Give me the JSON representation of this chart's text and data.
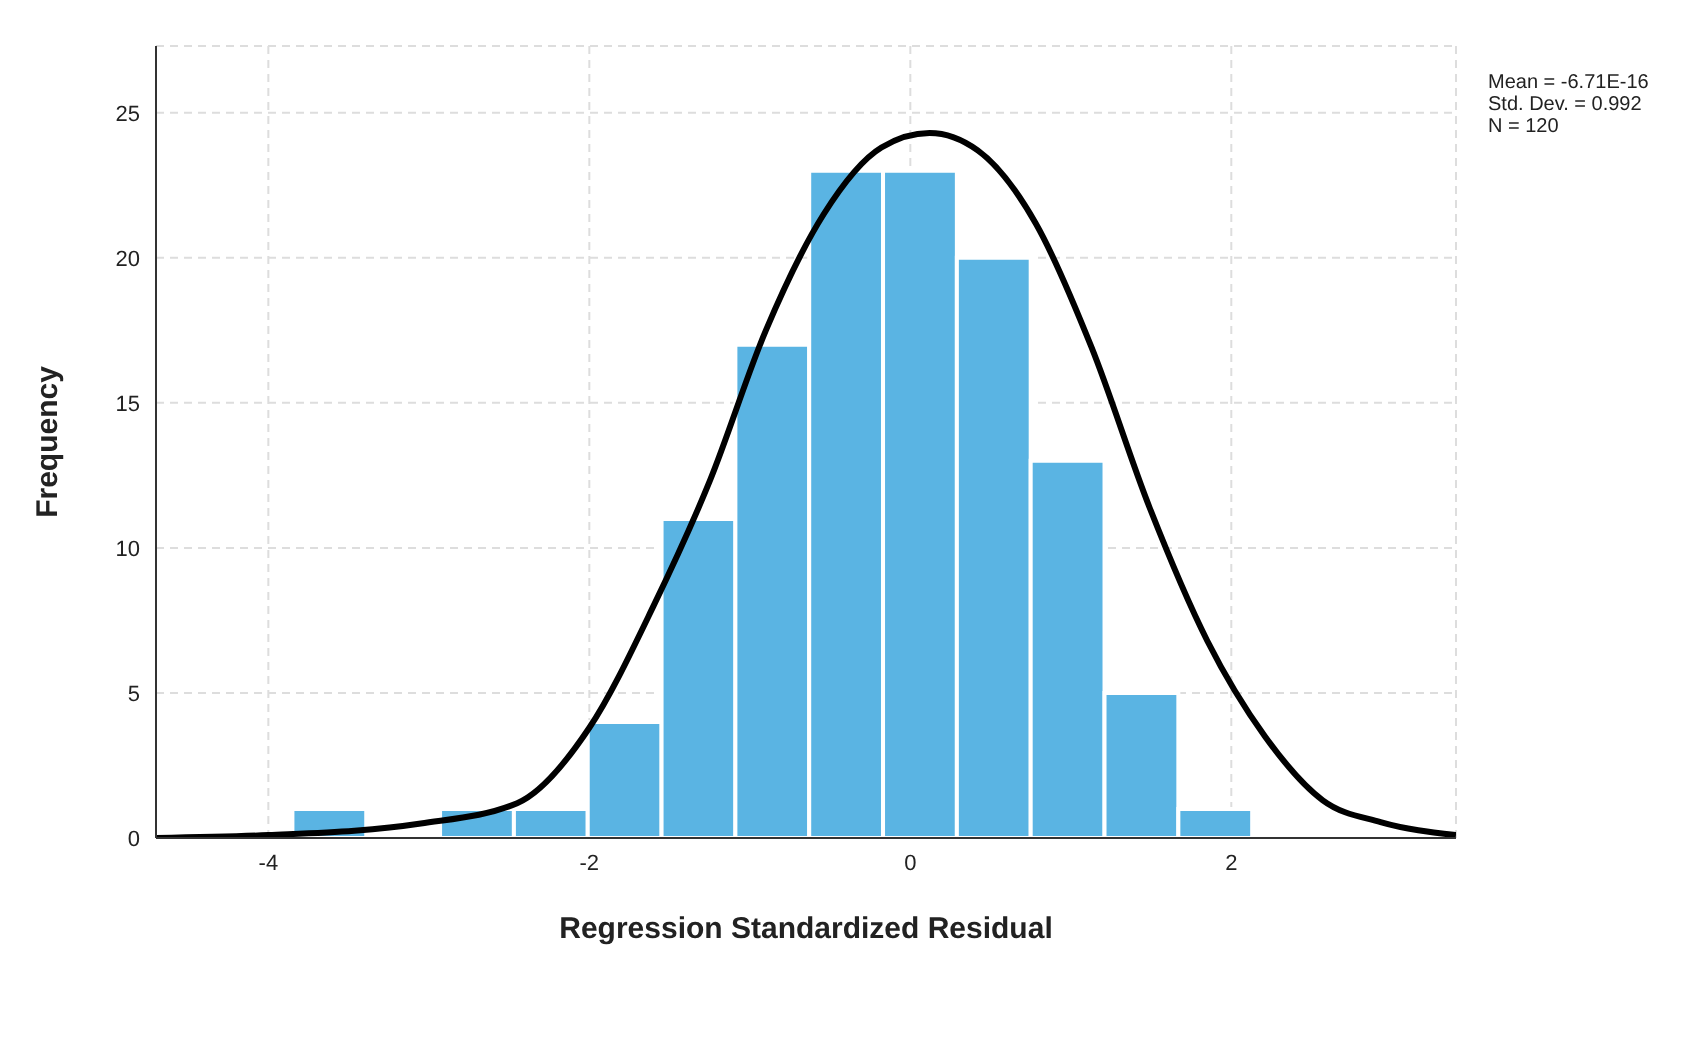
{
  "chart_data": {
    "type": "histogram",
    "xlabel": "Regression Standardized Residual",
    "ylabel": "Frequency",
    "bins": [
      -3.85,
      -3.39,
      -2.93,
      -2.47,
      -2.01,
      -1.55,
      -1.09,
      -0.63,
      -0.17,
      0.29,
      0.75,
      1.21,
      1.67,
      2.13
    ],
    "values": [
      1,
      0,
      1,
      1,
      4,
      11,
      17,
      23,
      23,
      20,
      13,
      5,
      1
    ],
    "color": "#5ab4e3",
    "series": [
      {
        "type": "line",
        "color": "#000000",
        "x": [
          -4.7,
          -4,
          -3.05,
          -2.45,
          -2,
          -1.6,
          -1.25,
          -0.9,
          -0.54,
          -0.18,
          0.12,
          0.42,
          0.78,
          1.13,
          1.49,
          1.85,
          2.21,
          2.57,
          2.93,
          3.4
        ],
        "values": [
          0,
          0.1,
          0.5,
          1.2,
          3.8,
          8,
          12.3,
          17.5,
          21.5,
          23.8,
          24.3,
          23.7,
          21.2,
          16.9,
          11.4,
          6.8,
          3.5,
          1.3,
          0.55,
          0.1
        ]
      }
    ],
    "xlim": [
      -4.7,
      3.4
    ],
    "xticks": [
      -4,
      -2,
      0,
      2
    ],
    "ylim": [
      0,
      27.3
    ],
    "yticks": [
      0,
      5,
      10,
      15,
      20,
      25
    ],
    "grid": true,
    "annotations": [
      "Mean = -6.71E-16",
      "Std. Dev. = 0.992",
      "N = 120"
    ]
  }
}
